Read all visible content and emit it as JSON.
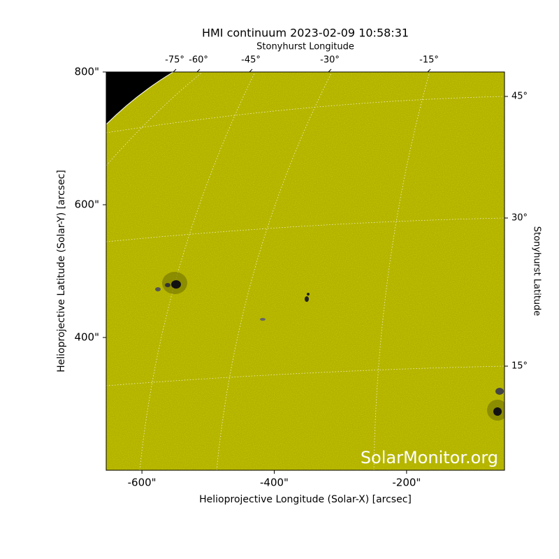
{
  "chart_data": {
    "type": "image",
    "title": "HMI continuum 2023-02-09 10:58:31",
    "xlabel": "Helioprojective Longitude (Solar-X) [arcsec]",
    "ylabel": "Helioprojective Latitude (Solar-Y) [arcsec]",
    "top_label": "Stonyhurst Longitude",
    "right_label": "Stonyhurst Latitude",
    "xlim": [
      -654,
      -52
    ],
    "ylim": [
      200,
      800
    ],
    "xticks": [
      {
        "value": -600,
        "label": "-600\""
      },
      {
        "value": -400,
        "label": "-400\""
      },
      {
        "value": -200,
        "label": "-200\""
      }
    ],
    "yticks": [
      {
        "value": 400,
        "label": "400\""
      },
      {
        "value": 600,
        "label": "600\""
      },
      {
        "value": 800,
        "label": "800\""
      }
    ],
    "lon_ticks": [
      "-75°",
      "-60°",
      "-45°",
      "-30°",
      "-15°"
    ],
    "lat_ticks": [
      "15°",
      "30°",
      "45°"
    ],
    "color": "#c8c800",
    "annotation": "SolarMonitor.org"
  }
}
